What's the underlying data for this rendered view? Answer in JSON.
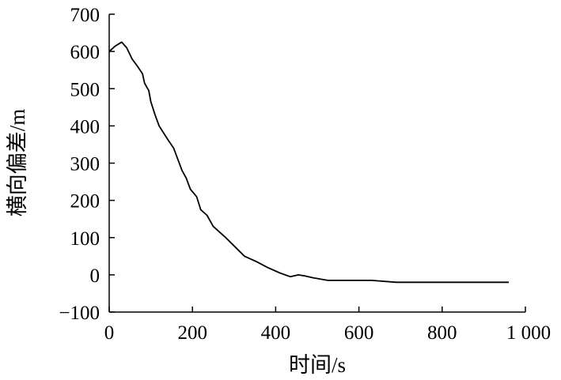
{
  "chart_data": {
    "type": "line",
    "title": "",
    "xlabel": "时间/s",
    "ylabel": "横向偏差/m",
    "xlim": [
      0,
      1000
    ],
    "ylim": [
      -100,
      700
    ],
    "grid": false,
    "x_ticks": [
      0,
      200,
      400,
      600,
      800,
      1000
    ],
    "x_tick_labels": [
      "0",
      "200",
      "400",
      "600",
      "800",
      "1 000"
    ],
    "y_ticks": [
      -100,
      0,
      100,
      200,
      300,
      400,
      500,
      600,
      700
    ],
    "y_tick_labels": [
      "−100",
      "0",
      "100",
      "200",
      "300",
      "400",
      "500",
      "600",
      "700"
    ],
    "series": [
      {
        "color": "#000000",
        "x": [
          0,
          15,
          30,
          42,
          55,
          68,
          80,
          85,
          90,
          95,
          100,
          110,
          120,
          140,
          155,
          165,
          175,
          185,
          195,
          210,
          220,
          235,
          250,
          280,
          325,
          355,
          380,
          410,
          435,
          455,
          470,
          490,
          525,
          630,
          690,
          800,
          960
        ],
        "y": [
          600,
          615,
          625,
          610,
          580,
          560,
          540,
          515,
          505,
          495,
          465,
          430,
          400,
          365,
          340,
          310,
          280,
          260,
          230,
          210,
          175,
          160,
          130,
          100,
          50,
          35,
          20,
          5,
          -5,
          0,
          -3,
          -8,
          -15,
          -15,
          -20,
          -20,
          -20
        ]
      }
    ]
  }
}
